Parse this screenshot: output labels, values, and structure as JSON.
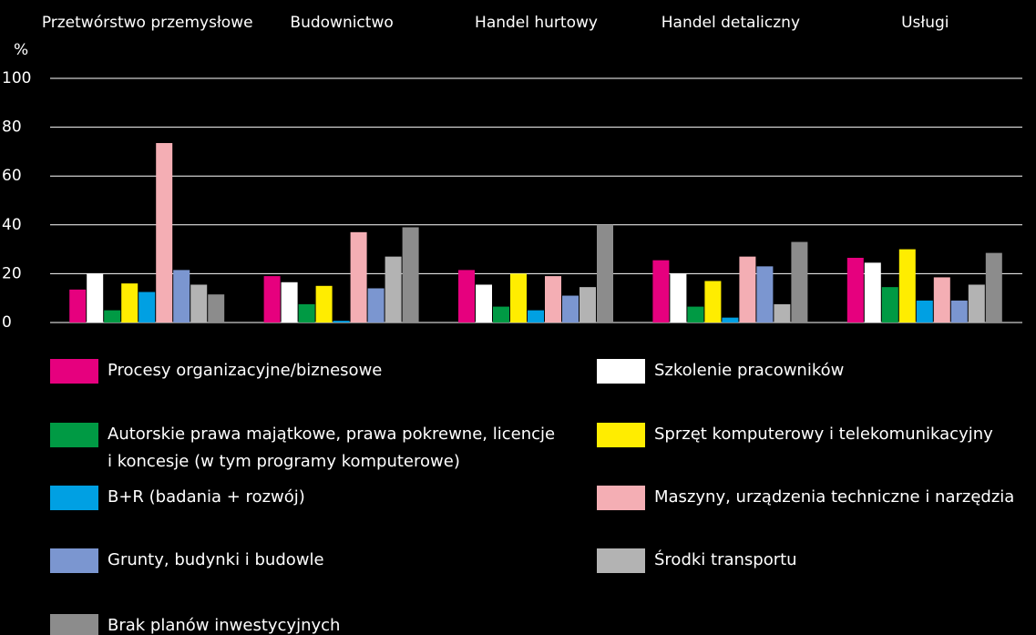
{
  "chart_data": {
    "type": "bar",
    "y_label": "%",
    "categories": [
      "Przetwórstwo przemysłowe",
      "Budownictwo",
      "Handel hurtowy",
      "Handel detaliczny",
      "Usługi"
    ],
    "ylim": [
      0,
      100
    ],
    "yticks": [
      0,
      20,
      40,
      60,
      80,
      100
    ],
    "grid": true,
    "series": [
      {
        "name": "Procesy organizacyjne/biznesowe",
        "color": "#e6007e",
        "values": [
          13.5,
          19,
          21.5,
          25.5,
          26.5
        ]
      },
      {
        "name": "Szkolenie pracowników",
        "color": "#ffffff",
        "values": [
          20,
          16.5,
          15.5,
          20,
          24.5
        ]
      },
      {
        "name": "Autorskie prawa majątkowe, prawa pokrewne, licencje i koncesje (w tym programy komputerowe)",
        "color": "#009a44",
        "values": [
          5,
          7.5,
          6.5,
          6.5,
          14.5
        ]
      },
      {
        "name": "Sprzęt komputerowy i telekomunikacyjny",
        "color": "#ffed00",
        "values": [
          16,
          15,
          20,
          17,
          30
        ]
      },
      {
        "name": "B+R (badania + rozwój)",
        "color": "#00a0e3",
        "values": [
          12.5,
          0.7,
          5,
          2,
          9
        ]
      },
      {
        "name": "Maszyny, urządzenia techniczne i narzędzia",
        "color": "#f4aeb4",
        "values": [
          73.5,
          37,
          19,
          27,
          18.5
        ]
      },
      {
        "name": "Grunty, budynki i budowle",
        "color": "#7b96d0",
        "values": [
          21.5,
          14,
          11,
          23,
          9
        ]
      },
      {
        "name": "Środki transportu",
        "color": "#b3b3b3",
        "values": [
          15.5,
          27,
          14.5,
          7.5,
          15.5
        ]
      },
      {
        "name": "Brak planów inwestycyjnych",
        "color": "#8c8c8c",
        "values": [
          11.5,
          39,
          40,
          33,
          28.5
        ]
      }
    ]
  }
}
